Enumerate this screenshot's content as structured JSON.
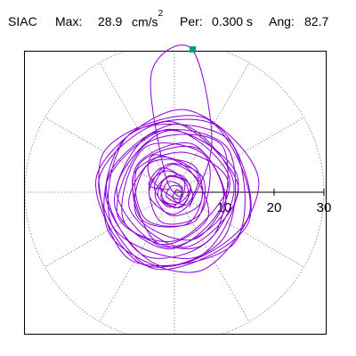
{
  "header": {
    "station": "SIAC",
    "max_label": "Max:",
    "max_value": "28.9",
    "max_unit": "cm/s",
    "max_unit_exp": "2",
    "per_label": "Per:",
    "per_value": "0.300 s",
    "ang_label": "Ang:",
    "ang_value": "82.7"
  },
  "chart_data": {
    "type": "scatter",
    "description_of_axes": "polar",
    "radial_ticks": [
      10,
      20,
      30
    ],
    "radial_tick_labels": [
      "10",
      "20",
      "30"
    ],
    "rmax": 30,
    "spoke_angles_deg": [
      0,
      30,
      60,
      90,
      120,
      150,
      180,
      210,
      240,
      270,
      300,
      330
    ],
    "grid": true,
    "trace_color": "#8a00d4",
    "max_marker_color": "#00a07a",
    "max_marker": {
      "r": 28.9,
      "angle_deg": 82.7
    },
    "trace": [
      [
        -1.0,
        0.5
      ],
      [
        -5.1,
        1.4
      ],
      [
        -2.5,
        4.9
      ],
      [
        1.9,
        2.4
      ],
      [
        0.7,
        -1.4
      ],
      [
        -4.9,
        3.0
      ],
      [
        -4.0,
        7.5
      ],
      [
        3.3,
        4.1
      ],
      [
        6.6,
        -5.3
      ],
      [
        -3.4,
        -10.2
      ],
      [
        -8.3,
        3.2
      ],
      [
        2.0,
        8.0
      ],
      [
        10.8,
        1.5
      ],
      [
        0.4,
        -9.7
      ],
      [
        -11.4,
        -4.7
      ],
      [
        -5.4,
        9.9
      ],
      [
        9.6,
        9.3
      ],
      [
        7.9,
        -8.6
      ],
      [
        -6.3,
        -12.6
      ],
      [
        -13.5,
        2.6
      ],
      [
        0.7,
        13.7
      ],
      [
        11.9,
        1.9
      ],
      [
        4.8,
        -11.0
      ],
      [
        -10.0,
        -6.1
      ],
      [
        -6.2,
        8.8
      ],
      [
        6.2,
        7.3
      ],
      [
        5.4,
        -4.0
      ],
      [
        -2.4,
        -6.1
      ],
      [
        -5.1,
        0.8
      ],
      [
        -1.6,
        4.3
      ],
      [
        3.1,
        1.4
      ],
      [
        1.2,
        -2.0
      ],
      [
        -1.6,
        -0.8
      ],
      [
        -0.6,
        1.2
      ],
      [
        1.3,
        0.9
      ],
      [
        1.2,
        -1.6
      ],
      [
        -1.4,
        -2.9
      ],
      [
        -4.0,
        1.3
      ],
      [
        -0.2,
        5.6
      ],
      [
        5.6,
        1.1
      ],
      [
        2.6,
        -6.3
      ],
      [
        -6.7,
        -5.3
      ],
      [
        -7.4,
        5.6
      ],
      [
        3.8,
        9.6
      ],
      [
        9.8,
        -1.9
      ],
      [
        -1.0,
        -11.4
      ],
      [
        -12.0,
        -2.6
      ],
      [
        -4.7,
        11.7
      ],
      [
        10.7,
        8.8
      ],
      [
        9.8,
        -9.3
      ],
      [
        -6.6,
        -14.4
      ],
      [
        -15.6,
        3.3
      ],
      [
        1.5,
        16.6
      ],
      [
        16.9,
        2.5
      ],
      [
        5.4,
        -15.7
      ],
      [
        -13.0,
        -8.4
      ],
      [
        -9.9,
        10.8
      ],
      [
        8.7,
        13.2
      ],
      [
        14.8,
        -6.2
      ],
      [
        -4.3,
        -15.3
      ],
      [
        -15.2,
        2.2
      ],
      [
        -1.0,
        14.2
      ],
      [
        12.8,
        1.1
      ],
      [
        2.5,
        -11.0
      ],
      [
        -9.0,
        -3.3
      ],
      [
        -3.9,
        6.8
      ],
      [
        4.5,
        3.9
      ],
      [
        2.7,
        -2.3
      ],
      [
        -0.2,
        -1.4
      ],
      [
        0.3,
        0.4
      ],
      [
        1.4,
        -0.2
      ],
      [
        0.6,
        -2.3
      ],
      [
        -2.1,
        -1.6
      ],
      [
        -2.4,
        2.2
      ],
      [
        1.6,
        3.3
      ],
      [
        3.6,
        -1.3
      ],
      [
        -0.5,
        -4.4
      ],
      [
        -5.1,
        -0.3
      ],
      [
        -1.1,
        5.7
      ],
      [
        5.8,
        2.7
      ],
      [
        4.0,
        -5.9
      ],
      [
        -5.9,
        -5.3
      ],
      [
        -7.0,
        5.7
      ],
      [
        4.9,
        8.7
      ],
      [
        10.1,
        -3.6
      ],
      [
        -2.1,
        -11.0
      ],
      [
        -11.6,
        0.5
      ],
      [
        -1.1,
        12.4
      ],
      [
        12.7,
        3.0
      ],
      [
        4.8,
        -12.9
      ],
      [
        -12.4,
        -6.8
      ],
      [
        -8.7,
        11.9
      ],
      [
        11.0,
        10.4
      ],
      [
        12.1,
        -10.1
      ],
      [
        -9.1,
        -13.4
      ],
      [
        -14.3,
        7.8
      ],
      [
        6.1,
        14.9
      ],
      [
        15.0,
        -4.5
      ],
      [
        -2.5,
        -14.8
      ],
      [
        -13.9,
        0.4
      ],
      [
        -1.4,
        12.6
      ],
      [
        11.0,
        3.0
      ],
      [
        4.3,
        -9.3
      ],
      [
        -7.4,
        -5.0
      ],
      [
        -5.4,
        5.5
      ],
      [
        3.7,
        5.5
      ],
      [
        5.3,
        -2.0
      ],
      [
        -0.5,
        -4.7
      ],
      [
        -3.9,
        -0.6
      ],
      [
        -1.5,
        3.0
      ],
      [
        2.0,
        2.2
      ],
      [
        2.7,
        -1.1
      ],
      [
        0.2,
        -3.1
      ],
      [
        -3.3,
        -0.7
      ],
      [
        -1.1,
        3.3
      ],
      [
        3.2,
        1.3
      ],
      [
        1.3,
        -3.0
      ],
      [
        -2.6,
        -1.3
      ],
      [
        -1.2,
        2.1
      ],
      [
        1.5,
        1.0
      ],
      [
        0.8,
        -0.8
      ],
      [
        -2.0,
        4.1
      ],
      [
        -4.6,
        24.0
      ],
      [
        3.5,
        28.7
      ],
      [
        7.5,
        10.0
      ],
      [
        3.0,
        -3.0
      ]
    ]
  }
}
